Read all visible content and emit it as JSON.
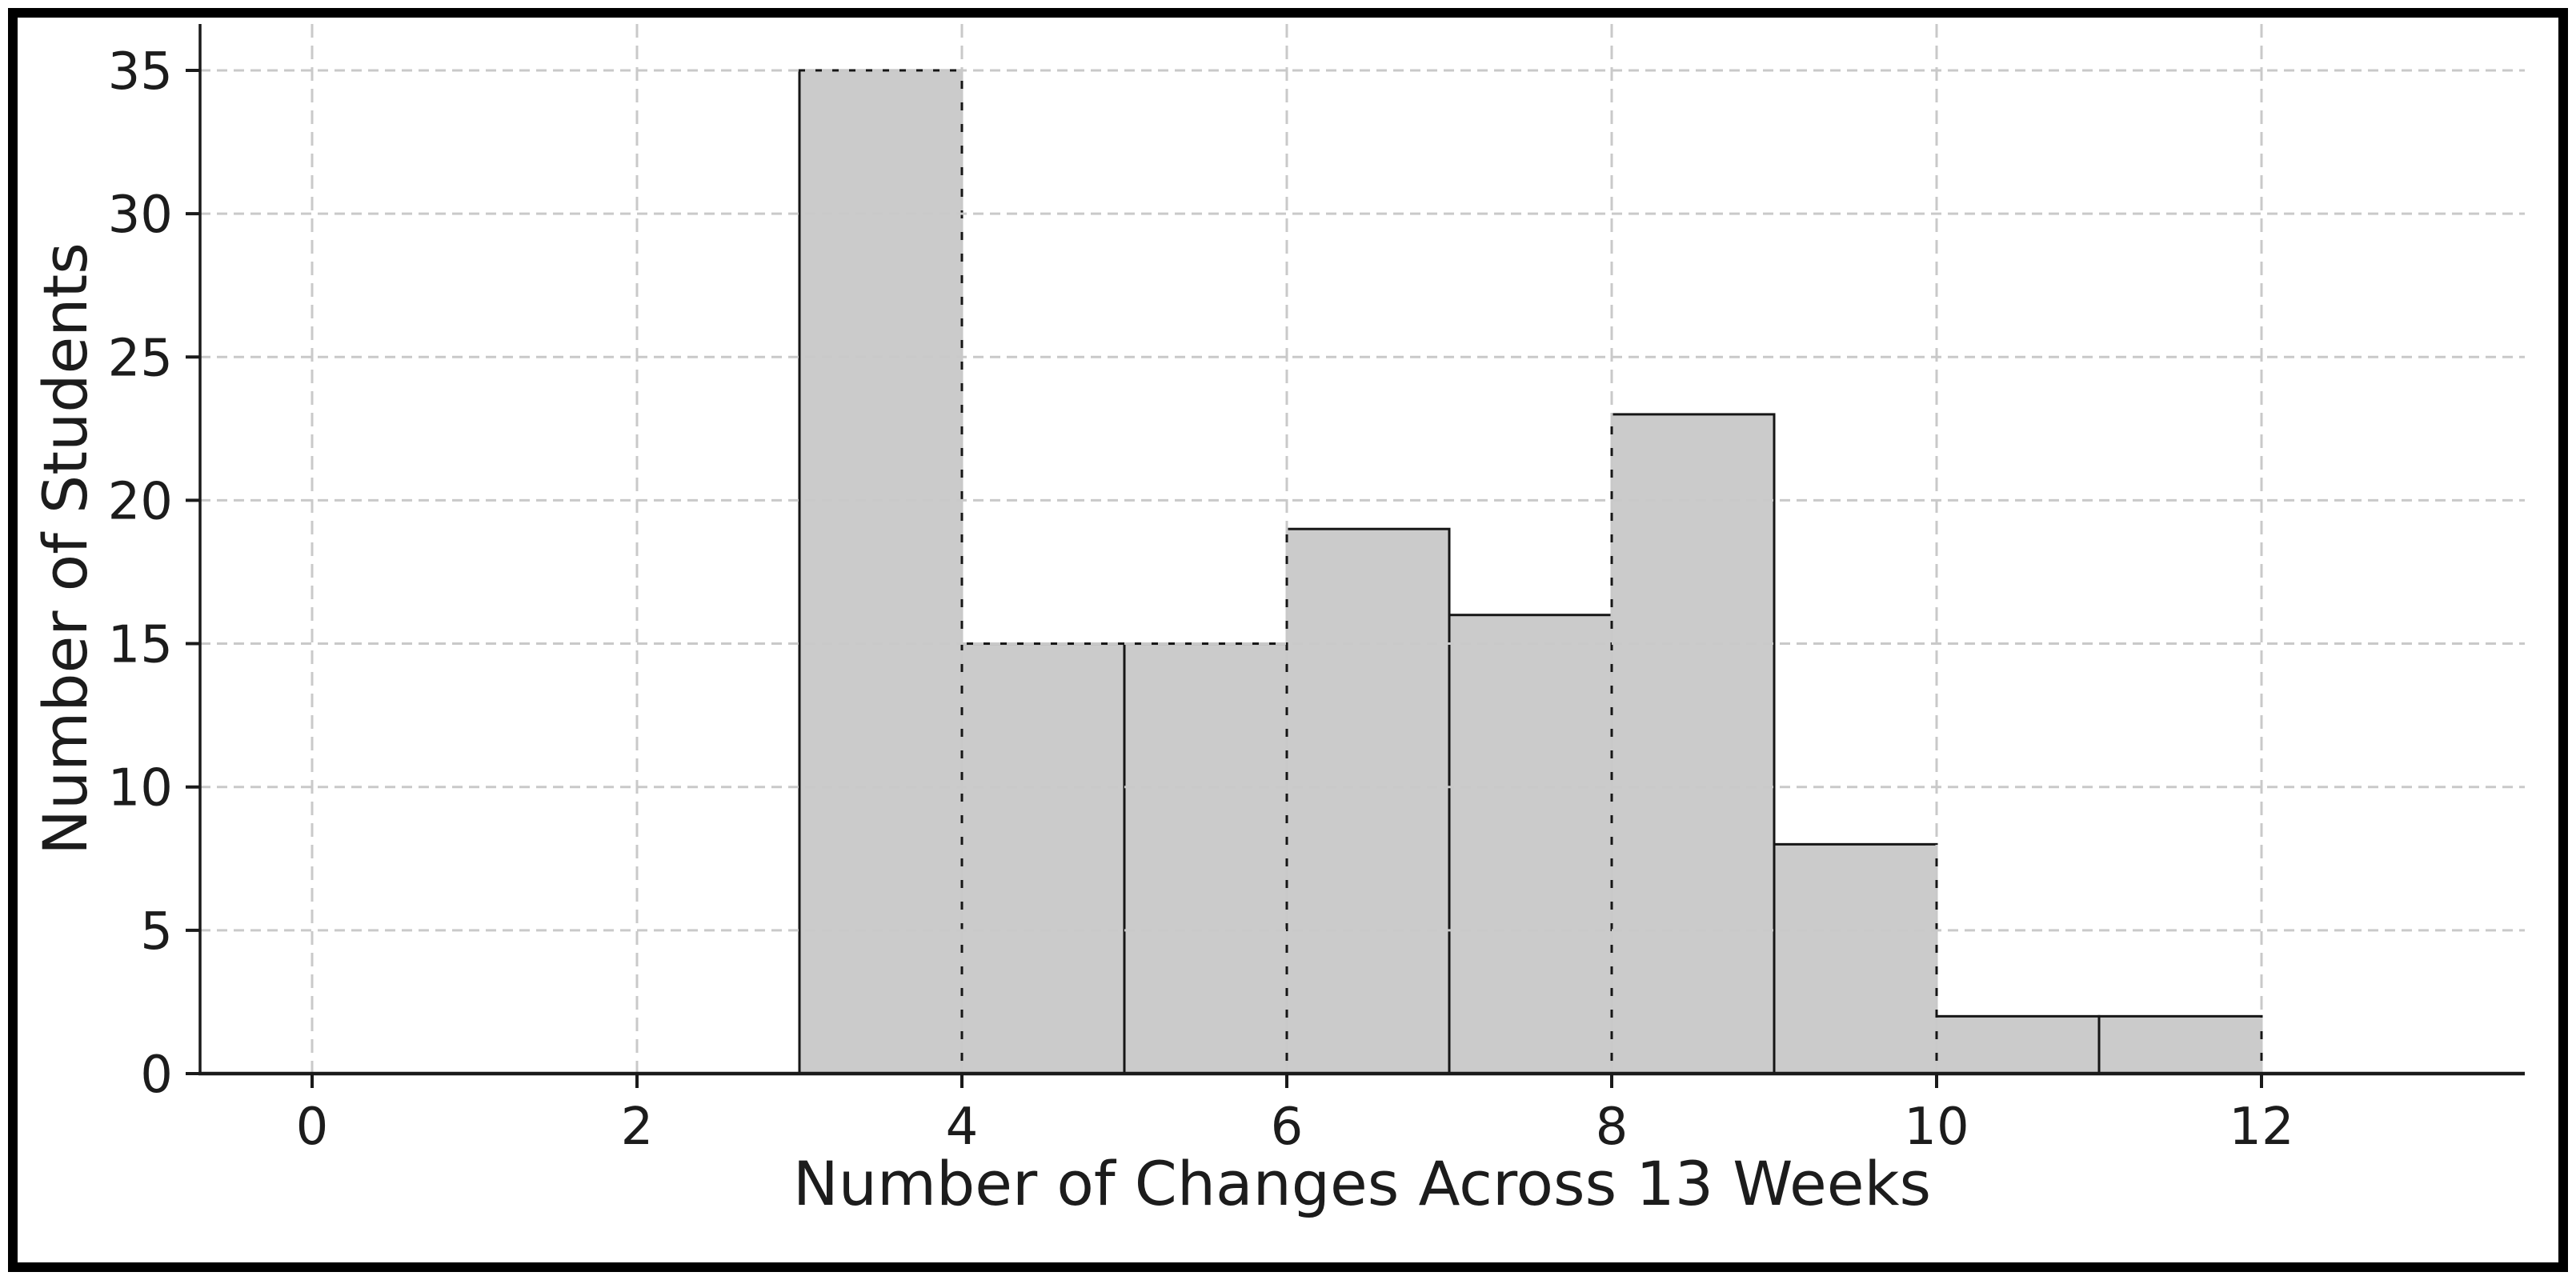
{
  "chart_data": {
    "type": "bar",
    "subtype": "histogram",
    "title": "",
    "xlabel": "Number of Changes Across 13 Weeks",
    "ylabel": "Number of Students",
    "bin_edges": [
      3,
      4,
      5,
      6,
      7,
      8,
      9,
      10,
      11,
      12
    ],
    "counts": [
      35,
      15,
      15,
      19,
      16,
      23,
      8,
      2,
      2
    ],
    "bins": [
      {
        "range": "3-4",
        "count": 35
      },
      {
        "range": "4-5",
        "count": 15
      },
      {
        "range": "5-6",
        "count": 15
      },
      {
        "range": "6-7",
        "count": 19
      },
      {
        "range": "7-8",
        "count": 16
      },
      {
        "range": "8-9",
        "count": 23
      },
      {
        "range": "9-10",
        "count": 8
      },
      {
        "range": "10-11",
        "count": 2
      },
      {
        "range": "11-12",
        "count": 2
      }
    ],
    "x_tick_values": [
      0,
      2,
      4,
      6,
      8,
      10,
      12
    ],
    "x_tick_labels": [
      "0",
      "2",
      "4",
      "6",
      "8",
      "10",
      "12"
    ],
    "y_tick_values": [
      0,
      5,
      10,
      15,
      20,
      25,
      30,
      35
    ],
    "y_tick_labels": [
      "0",
      "5",
      "10",
      "15",
      "20",
      "25",
      "30",
      "35"
    ],
    "xlim": [
      -0.69,
      13.62
    ],
    "ylim": [
      0,
      36.6
    ],
    "grid": true,
    "grid_style": "dashed",
    "legend_visible": false
  },
  "style": {
    "background": "#ffffff",
    "border_color": "#000000",
    "bar_fill": "#cbcbcb",
    "bar_edge": "#161616",
    "grid_color": "#c9c9c9",
    "axis_color": "#1a1a1a",
    "tick_color": "#1a1a1a",
    "text_color": "#1c1c1c"
  }
}
